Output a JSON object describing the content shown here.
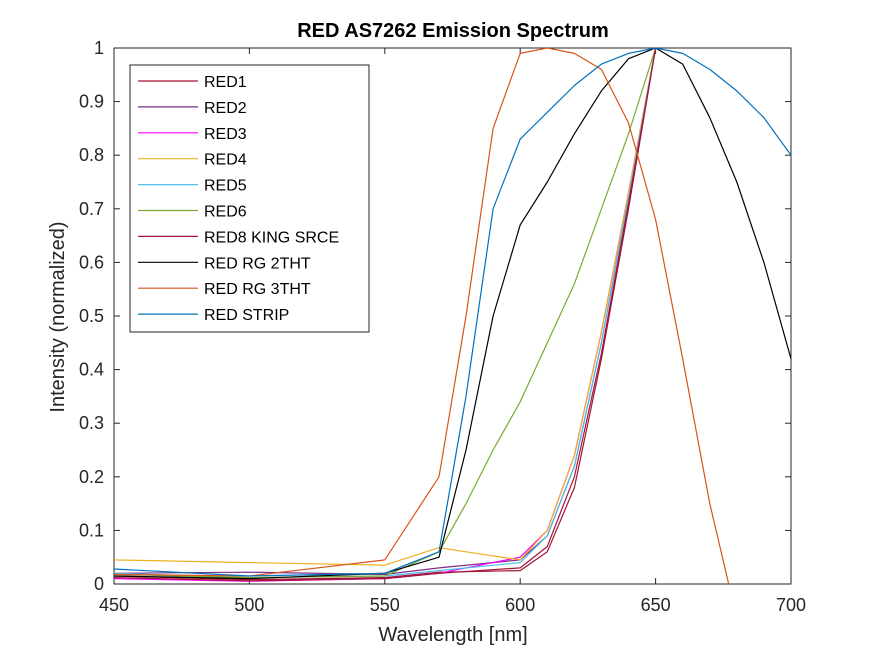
{
  "chart_data": {
    "type": "line",
    "title": "RED AS7262 Emission Spectrum",
    "xlabel": "Wavelength [nm]",
    "ylabel": "Intensity (normalized)",
    "xlim": [
      450,
      700
    ],
    "ylim": [
      0,
      1
    ],
    "xticks": [
      450,
      500,
      550,
      600,
      650,
      700
    ],
    "yticks": [
      0,
      0.1,
      0.2,
      0.3,
      0.4,
      0.5,
      0.6,
      0.7,
      0.8,
      0.9,
      1
    ],
    "xtick_labels": [
      "450",
      "500",
      "550",
      "600",
      "650",
      "700"
    ],
    "ytick_labels": [
      "0",
      "0.1",
      "0.2",
      "0.3",
      "0.4",
      "0.5",
      "0.6",
      "0.7",
      "0.8",
      "0.9",
      "1"
    ],
    "grid": false,
    "legend_position": "top-left",
    "series": [
      {
        "name": "RED1",
        "color": "#a2142f",
        "x": [
          450,
          500,
          550,
          570,
          600,
          610,
          620,
          630,
          640,
          650
        ],
        "y": [
          0.015,
          0.008,
          0.012,
          0.022,
          0.025,
          0.06,
          0.18,
          0.42,
          0.7,
          1.0
        ]
      },
      {
        "name": "RED2",
        "color": "#7e2f8e",
        "x": [
          450,
          500,
          550,
          570,
          600,
          610,
          620,
          630,
          640,
          650
        ],
        "y": [
          0.02,
          0.022,
          0.018,
          0.03,
          0.045,
          0.09,
          0.22,
          0.45,
          0.72,
          1.0
        ]
      },
      {
        "name": "RED3",
        "color": "#ff00ff",
        "x": [
          450,
          500,
          550,
          570,
          600,
          610,
          620,
          630,
          640,
          650
        ],
        "y": [
          0.01,
          0.005,
          0.01,
          0.02,
          0.05,
          0.1,
          0.24,
          0.47,
          0.73,
          1.0
        ]
      },
      {
        "name": "RED4",
        "color": "#edb120",
        "x": [
          450,
          500,
          550,
          570,
          580,
          600,
          610,
          620,
          630,
          640,
          650
        ],
        "y": [
          0.045,
          0.04,
          0.035,
          0.068,
          0.06,
          0.045,
          0.1,
          0.24,
          0.47,
          0.73,
          1.0
        ]
      },
      {
        "name": "RED5",
        "color": "#4dbeee",
        "x": [
          450,
          500,
          550,
          570,
          600,
          610,
          620,
          630,
          640,
          650
        ],
        "y": [
          0.02,
          0.012,
          0.015,
          0.025,
          0.04,
          0.09,
          0.22,
          0.45,
          0.72,
          1.0
        ]
      },
      {
        "name": "RED6",
        "color": "#77ac30",
        "x": [
          450,
          500,
          550,
          570,
          580,
          590,
          600,
          620,
          640,
          650
        ],
        "y": [
          0.018,
          0.012,
          0.015,
          0.06,
          0.15,
          0.25,
          0.34,
          0.56,
          0.84,
          1.0
        ]
      },
      {
        "name": "RED8 KING SRCE",
        "color": "#a2143c",
        "x": [
          450,
          500,
          550,
          570,
          600,
          610,
          620,
          630,
          640,
          650
        ],
        "y": [
          0.012,
          0.006,
          0.01,
          0.02,
          0.03,
          0.07,
          0.2,
          0.43,
          0.71,
          1.0
        ]
      },
      {
        "name": "RED RG 2THT",
        "color": "#000000",
        "x": [
          450,
          500,
          550,
          570,
          580,
          590,
          600,
          610,
          620,
          630,
          640,
          650,
          660,
          670,
          680,
          690,
          700
        ],
        "y": [
          0.015,
          0.01,
          0.02,
          0.05,
          0.25,
          0.5,
          0.67,
          0.75,
          0.84,
          0.92,
          0.98,
          1.0,
          0.97,
          0.87,
          0.75,
          0.6,
          0.42
        ]
      },
      {
        "name": "RED RG 3THT",
        "color": "#d95319",
        "x": [
          450,
          500,
          550,
          570,
          580,
          590,
          600,
          610,
          620,
          630,
          640,
          650,
          660,
          670,
          677
        ],
        "y": [
          0.018,
          0.015,
          0.045,
          0.2,
          0.5,
          0.85,
          0.99,
          1.0,
          0.99,
          0.96,
          0.86,
          0.68,
          0.42,
          0.15,
          0.0
        ]
      },
      {
        "name": "RED STRIP",
        "color": "#0072bd",
        "x": [
          450,
          500,
          550,
          570,
          580,
          590,
          600,
          610,
          620,
          630,
          640,
          650,
          660,
          670,
          680,
          690,
          700
        ],
        "y": [
          0.028,
          0.015,
          0.02,
          0.06,
          0.35,
          0.7,
          0.83,
          0.88,
          0.93,
          0.97,
          0.99,
          1.0,
          0.99,
          0.96,
          0.92,
          0.87,
          0.8
        ]
      }
    ]
  }
}
